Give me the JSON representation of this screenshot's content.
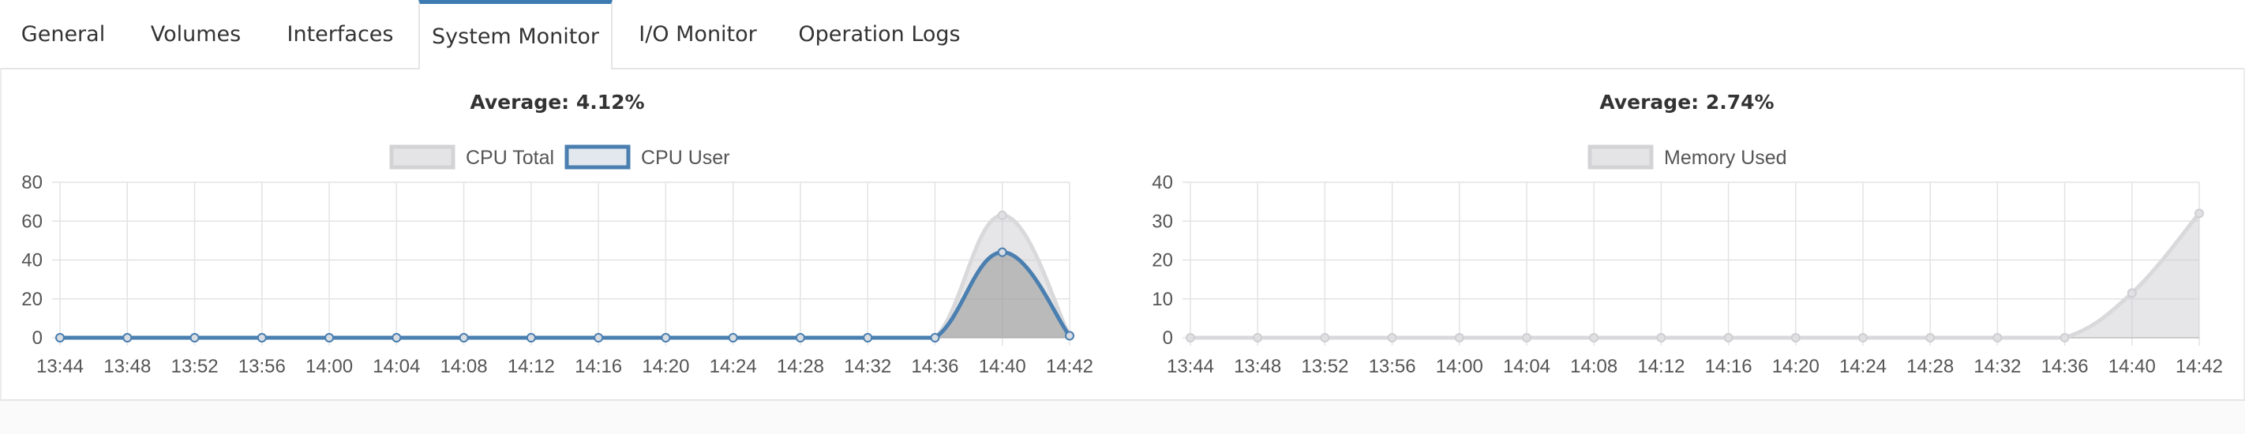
{
  "tabs": [
    {
      "label": "General",
      "active": false
    },
    {
      "label": "Volumes",
      "active": false
    },
    {
      "label": "Interfaces",
      "active": false
    },
    {
      "label": "System Monitor",
      "active": true
    },
    {
      "label": "I/O Monitor",
      "active": false
    },
    {
      "label": "Operation Logs",
      "active": false
    }
  ],
  "colors": {
    "accent": "#3d7cb3",
    "cpu_user": "#4a7fb0",
    "gray_line": "#d9d9dc",
    "gray_fill": "#e4e4e6"
  },
  "chart_data": [
    {
      "type": "area",
      "title": "Average: 4.12%",
      "x": [
        "13:44",
        "13:48",
        "13:52",
        "13:56",
        "14:00",
        "14:04",
        "14:08",
        "14:12",
        "14:16",
        "14:20",
        "14:24",
        "14:28",
        "14:32",
        "14:36",
        "14:40",
        "14:42"
      ],
      "series": [
        {
          "name": "CPU Total",
          "values": [
            0,
            0,
            0,
            0,
            0,
            0,
            0,
            0,
            0,
            0,
            0,
            0,
            0,
            0,
            63,
            1
          ]
        },
        {
          "name": "CPU User",
          "values": [
            0,
            0,
            0,
            0,
            0,
            0,
            0,
            0,
            0,
            0,
            0,
            0,
            0,
            0,
            44,
            1
          ]
        }
      ],
      "ylim": [
        0,
        80
      ],
      "yticks": [
        0,
        20,
        40,
        60,
        80
      ],
      "legend": "top-center",
      "grid": true
    },
    {
      "type": "area",
      "title": "Average: 2.74%",
      "x": [
        "13:44",
        "13:48",
        "13:52",
        "13:56",
        "14:00",
        "14:04",
        "14:08",
        "14:12",
        "14:16",
        "14:20",
        "14:24",
        "14:28",
        "14:32",
        "14:36",
        "14:40",
        "14:42"
      ],
      "series": [
        {
          "name": "Memory Used",
          "values": [
            0,
            0,
            0,
            0,
            0,
            0,
            0,
            0,
            0,
            0,
            0,
            0,
            0,
            0,
            11.5,
            32
          ]
        }
      ],
      "ylim": [
        0,
        40
      ],
      "yticks": [
        0,
        10,
        20,
        30,
        40
      ],
      "legend": "top-center",
      "grid": true
    }
  ]
}
